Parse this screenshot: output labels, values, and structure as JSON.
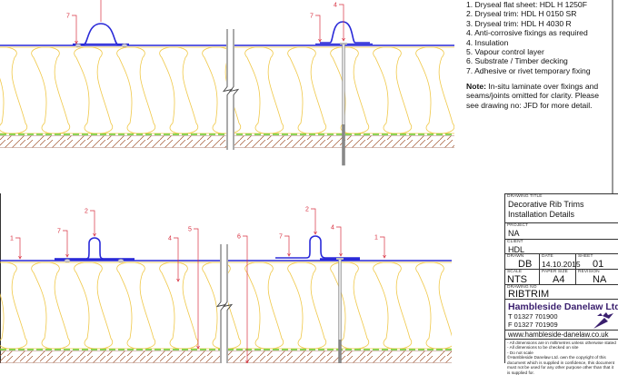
{
  "notes": {
    "items": [
      "1. Dryseal flat sheet: HDL H 1250F",
      "2. Dryseal trim: HDL H 0150 SR",
      "3. Dryseal trim: HDL H 4030 R",
      "4. Anti-corrosive fixings as required",
      "4. Insulation",
      "5. Vapour control layer",
      "6. Substrate / Timber decking",
      "7. Adhesive or rivet temporary fixing"
    ],
    "note_label": "Note:",
    "note_text": " In-situ laminate over fixings and seams/joints omitted for clarity. Please see drawing no: JFD for more detail."
  },
  "callouts": {
    "top": [
      "7",
      "7",
      "4"
    ],
    "bottom": [
      "1",
      "7",
      "2",
      "4",
      "5",
      "6",
      "7",
      "2",
      "4",
      "1"
    ]
  },
  "title_block": {
    "drawing_title_label": "DRAWING TITLE",
    "drawing_title": [
      "Decorative Rib Trims",
      "Installation Details"
    ],
    "project_label": "PROJECT",
    "project": "NA",
    "client_label": "CLIENT",
    "client": "HDL",
    "drawn_label": "DRAWN",
    "drawn": "DB",
    "date_label": "DATE",
    "date": "14.10.2015",
    "sheet_label": "SHEET",
    "sheet": "01",
    "scale_label": "SCALE",
    "scale": "NTS",
    "paper_size_label": "PAPER SIZE",
    "paper_size": "A4",
    "revision_label": "REVISION",
    "revision": "NA",
    "drawing_no_label": "DRAWING NO",
    "drawing_no": "RIBTRIM",
    "company": "Hambleside Danelaw Ltd",
    "phone": "T  01327 701900",
    "fax": "F  01327 701909",
    "website": "www.hambleside-danelaw.co.uk",
    "disclaimers": [
      "- All dimensions are in millimetres unless otherwise stated",
      "- All dimensions to be checked on site",
      "- Do not scale",
      "©Hambleside Danelaw Ltd. own the copyright of this",
      "document which is supplied in confidence, this document",
      "must not be used for any other purpose other than that it",
      "is supplied for."
    ]
  },
  "colors": {
    "sheet": "#2a2ad8",
    "insulation": "#f0c848",
    "vcl": "#66cc33",
    "timber": "#a0522d",
    "leader": "#d83040",
    "brand": "#3a1f6e"
  }
}
